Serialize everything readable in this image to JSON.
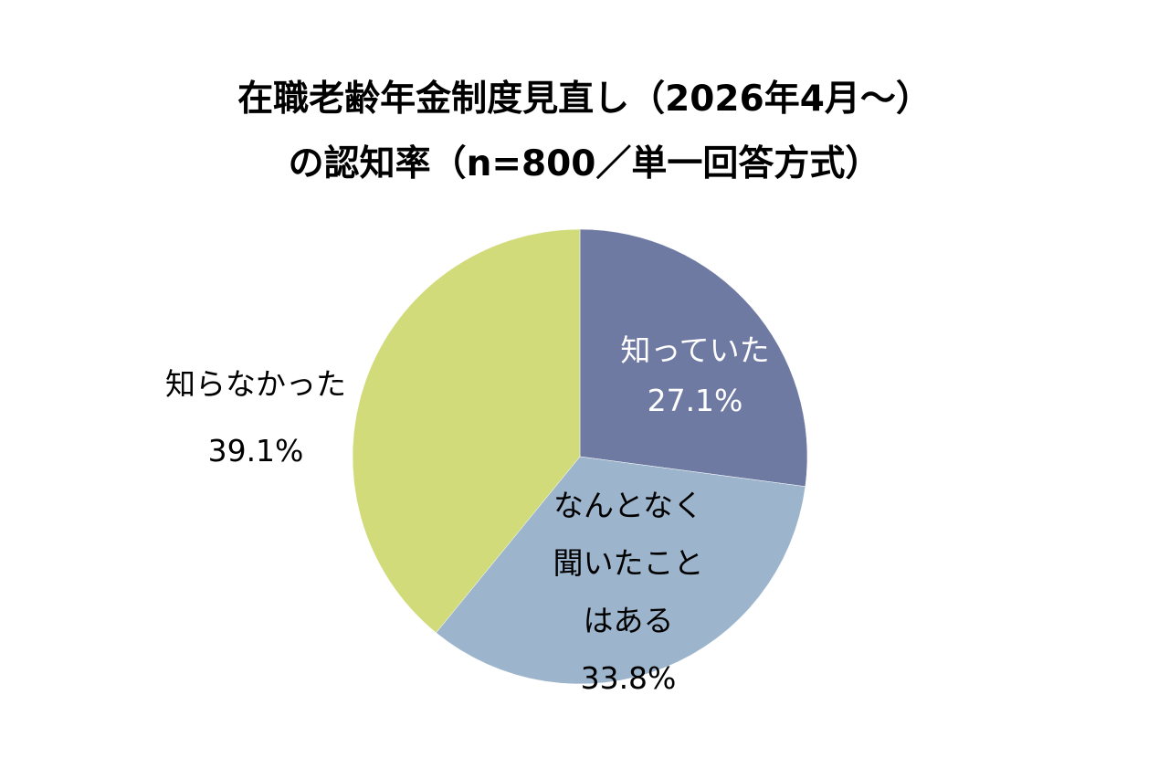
{
  "chart_data": {
    "type": "pie",
    "title": "在職老齢年金制度見直し（2026年4月～）の認知率（n=800／単一回答方式）",
    "title_lines": [
      "在職老齢年金制度見直し（2026年4月～）",
      "の認知率（n=800／単一回答方式）"
    ],
    "categories": [
      "知っていた",
      "なんとなく聞いたことはある",
      "知らなかった"
    ],
    "values": [
      27.1,
      33.8,
      39.1
    ],
    "unit": "%",
    "colors": [
      "#6f7aa3",
      "#9db5cc",
      "#d1db79"
    ],
    "start_angle": "12 o'clock, clockwise",
    "legend": "none (data labels on/next to slices)",
    "labels": [
      {
        "lines": [
          "知っていた"
        ],
        "value": "27.1%",
        "color": "#ffffff"
      },
      {
        "lines": [
          "なんとなく",
          "聞いたこと",
          "はある"
        ],
        "value": "33.8%",
        "color": "#000000"
      },
      {
        "lines": [
          "知らなかった"
        ],
        "value": "39.1%",
        "color": "#000000"
      }
    ]
  }
}
